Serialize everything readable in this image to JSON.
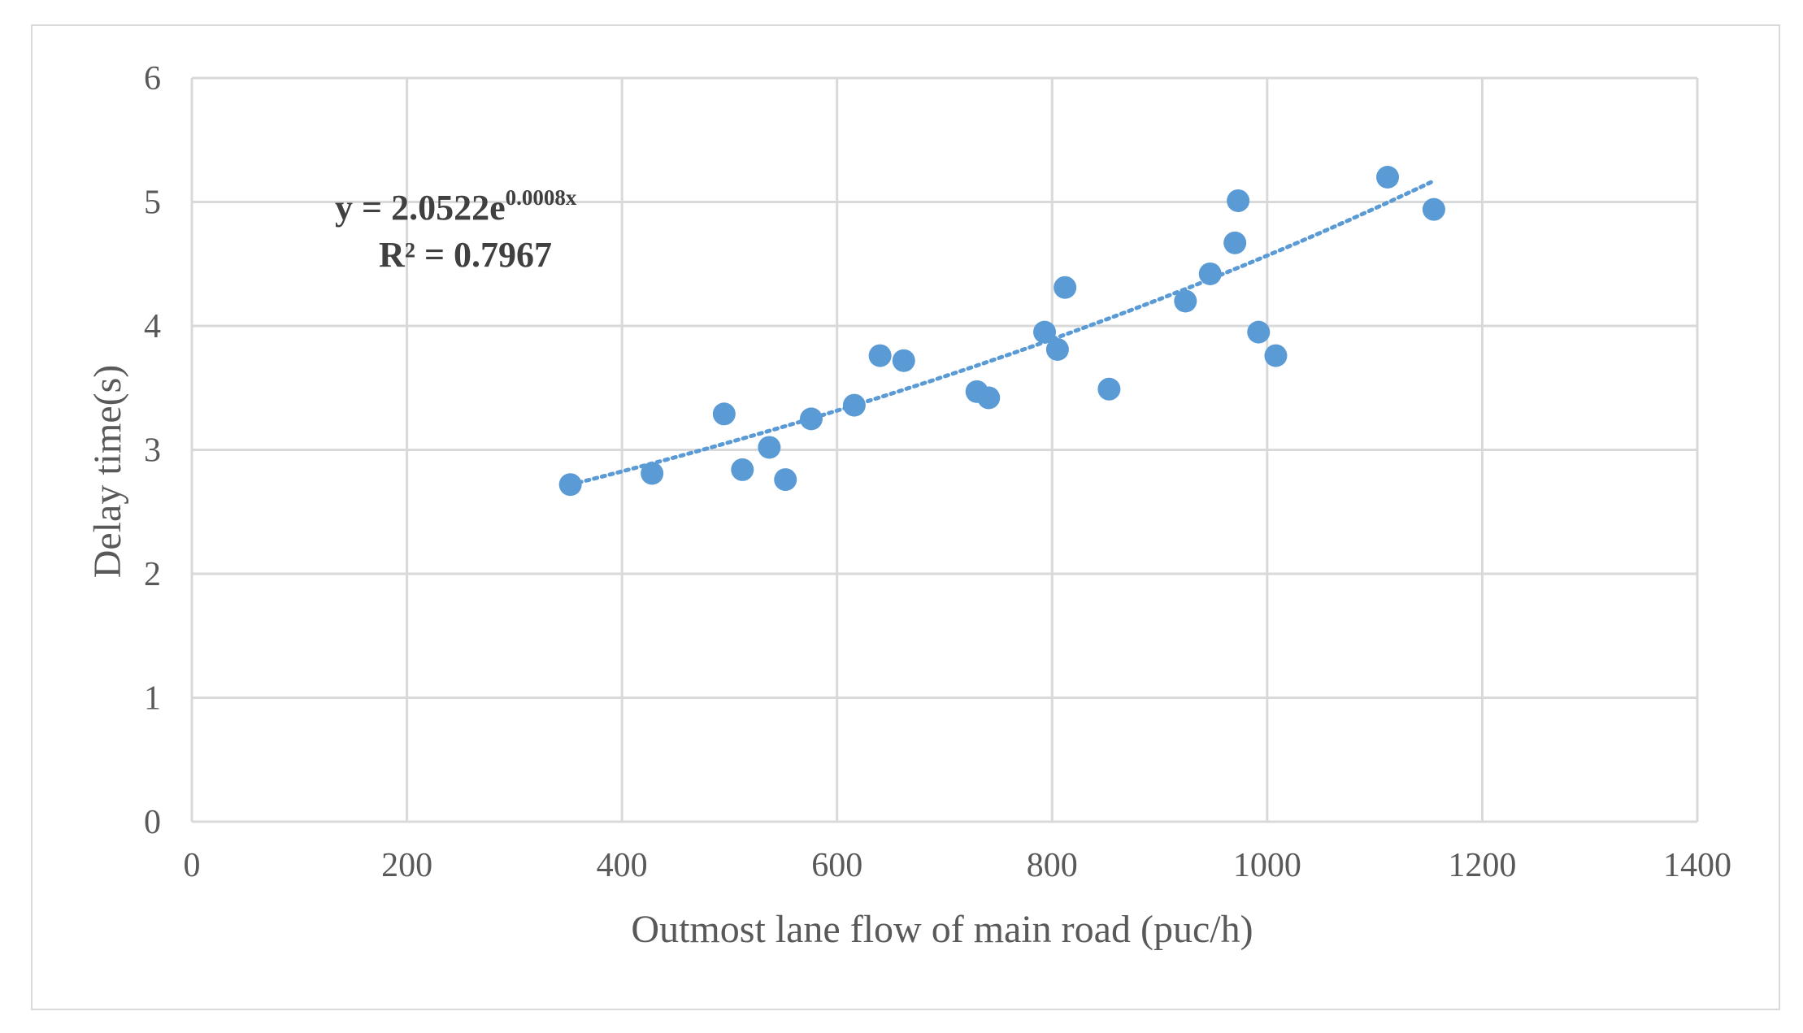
{
  "chart_data": {
    "type": "scatter",
    "title": "",
    "xlabel": "Outmost lane flow of main road (puc/h)",
    "ylabel": "Delay time(s)",
    "xlim": [
      0,
      1400
    ],
    "ylim": [
      0,
      6
    ],
    "xticks": [
      0,
      200,
      400,
      600,
      800,
      1000,
      1200,
      1400
    ],
    "yticks": [
      0,
      1,
      2,
      3,
      4,
      5,
      6
    ],
    "grid": true,
    "marker_color": "#5b9bd5",
    "trendline_color": "#5b9bd5",
    "series": [
      {
        "name": "Delay time",
        "x": [
          352,
          428,
          495,
          512,
          537,
          552,
          576,
          616,
          640,
          662,
          730,
          741,
          793,
          805,
          812,
          853,
          924,
          947,
          970,
          973,
          992,
          1008,
          1112,
          1155
        ],
        "y": [
          2.72,
          2.81,
          3.29,
          2.84,
          3.02,
          2.76,
          3.25,
          3.36,
          3.76,
          3.72,
          3.47,
          3.42,
          3.95,
          3.81,
          4.31,
          3.49,
          4.2,
          4.42,
          4.67,
          5.01,
          3.95,
          3.76,
          5.2,
          4.94
        ]
      }
    ],
    "trendline": {
      "type": "exponential",
      "a": 2.0522,
      "b": 0.0008,
      "x_range": [
        352,
        1155
      ],
      "equation_prefix": "y = 2.0522e",
      "equation_exponent": "0.0008x",
      "r_squared_label": "R² = 0.7967"
    }
  }
}
